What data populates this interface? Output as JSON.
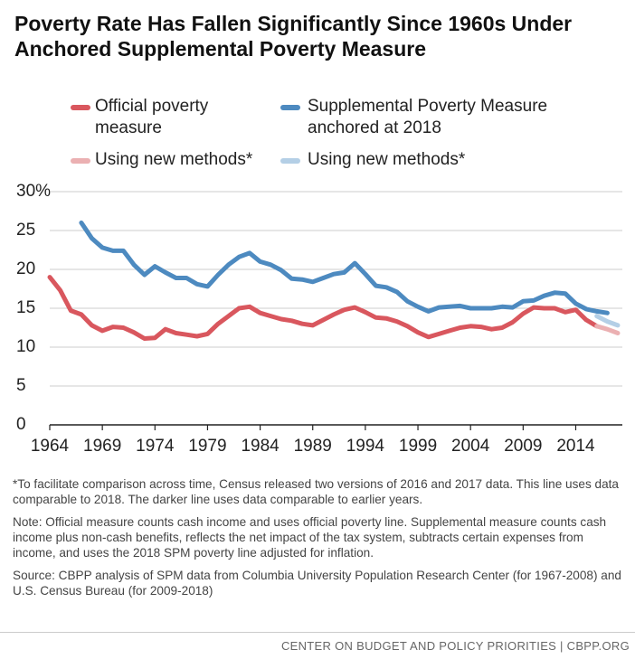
{
  "chart_data": {
    "type": "line",
    "title": "Poverty Rate Has Fallen Significantly Since 1960s Under Anchored Supplemental Poverty Measure",
    "x": [
      1964,
      1965,
      1966,
      1967,
      1968,
      1969,
      1970,
      1971,
      1972,
      1973,
      1974,
      1975,
      1976,
      1977,
      1978,
      1979,
      1980,
      1981,
      1982,
      1983,
      1984,
      1985,
      1986,
      1987,
      1988,
      1989,
      1990,
      1991,
      1992,
      1993,
      1994,
      1995,
      1996,
      1997,
      1998,
      1999,
      2000,
      2001,
      2002,
      2003,
      2004,
      2005,
      2006,
      2007,
      2008,
      2009,
      2010,
      2011,
      2012,
      2013,
      2014,
      2015,
      2016,
      2017,
      2018
    ],
    "xlim": [
      1964,
      2018
    ],
    "xticks": [
      1964,
      1969,
      1974,
      1979,
      1984,
      1989,
      1994,
      1999,
      2004,
      2009,
      2014
    ],
    "ylim": [
      0,
      30
    ],
    "yticks": [
      0,
      5,
      10,
      15,
      20,
      25,
      {
        "value": 30,
        "label": "30%"
      }
    ],
    "grid": true,
    "series": [
      {
        "name": "Official poverty measure",
        "color": "#d9575e",
        "values": [
          19.0,
          17.3,
          14.7,
          14.2,
          12.8,
          12.1,
          12.6,
          12.5,
          11.9,
          11.1,
          11.2,
          12.3,
          11.8,
          11.6,
          11.4,
          11.7,
          13.0,
          14.0,
          15.0,
          15.2,
          14.4,
          14.0,
          13.6,
          13.4,
          13.0,
          12.8,
          13.5,
          14.2,
          14.8,
          15.1,
          14.5,
          13.8,
          13.7,
          13.3,
          12.7,
          11.9,
          11.3,
          11.7,
          12.1,
          12.5,
          12.7,
          12.6,
          12.3,
          12.5,
          13.2,
          14.3,
          15.1,
          15.0,
          15.0,
          14.5,
          14.8,
          13.5,
          12.7,
          null,
          null
        ]
      },
      {
        "name": "Supplemental Poverty Measure anchored at 2018",
        "color": "#4d8ac0",
        "values": [
          null,
          null,
          null,
          26.0,
          24.0,
          22.8,
          22.4,
          22.4,
          20.6,
          19.3,
          20.4,
          19.6,
          18.9,
          18.9,
          18.1,
          17.8,
          19.3,
          20.6,
          21.6,
          22.1,
          21.0,
          20.6,
          19.9,
          18.8,
          18.7,
          18.4,
          18.9,
          19.4,
          19.6,
          20.8,
          19.4,
          17.9,
          17.7,
          17.1,
          15.9,
          15.2,
          14.6,
          15.1,
          15.2,
          15.3,
          15.0,
          15.0,
          15.0,
          15.2,
          15.1,
          15.9,
          16.0,
          16.6,
          17.0,
          16.9,
          15.6,
          14.9,
          14.6,
          14.4,
          null
        ]
      },
      {
        "name": "Using new methods*",
        "color": "#ebb0b2",
        "values": [
          null,
          null,
          null,
          null,
          null,
          null,
          null,
          null,
          null,
          null,
          null,
          null,
          null,
          null,
          null,
          null,
          null,
          null,
          null,
          null,
          null,
          null,
          null,
          null,
          null,
          null,
          null,
          null,
          null,
          null,
          null,
          null,
          null,
          null,
          null,
          null,
          null,
          null,
          null,
          null,
          null,
          null,
          null,
          null,
          null,
          null,
          null,
          null,
          null,
          null,
          null,
          null,
          12.7,
          12.3,
          11.8
        ]
      },
      {
        "name": "Using new methods*",
        "color": "#b4cfe6",
        "values": [
          null,
          null,
          null,
          null,
          null,
          null,
          null,
          null,
          null,
          null,
          null,
          null,
          null,
          null,
          null,
          null,
          null,
          null,
          null,
          null,
          null,
          null,
          null,
          null,
          null,
          null,
          null,
          null,
          null,
          null,
          null,
          null,
          null,
          null,
          null,
          null,
          null,
          null,
          null,
          null,
          null,
          null,
          null,
          null,
          null,
          null,
          null,
          null,
          null,
          null,
          null,
          null,
          14.0,
          13.3,
          12.8
        ]
      }
    ],
    "notes": [
      "*To facilitate comparison across time, Census released two versions of 2016 and 2017 data. This line uses data comparable to 2018. The darker line uses data comparable to earlier years.",
      "Note: Official measure counts cash income and uses official poverty line. Supplemental measure counts cash income plus non-cash benefits, reflects the net impact of the tax system, subtracts certain expenses from income, and uses the 2018 SPM poverty line adjusted for inflation.",
      "Source: CBPP analysis of SPM data from Columbia University Population Research Center (for 1967-2008) and U.S. Census Bureau (for 2009-2018)"
    ],
    "footer": "CENTER ON BUDGET AND POLICY PRIORITIES | CBPP.ORG"
  }
}
